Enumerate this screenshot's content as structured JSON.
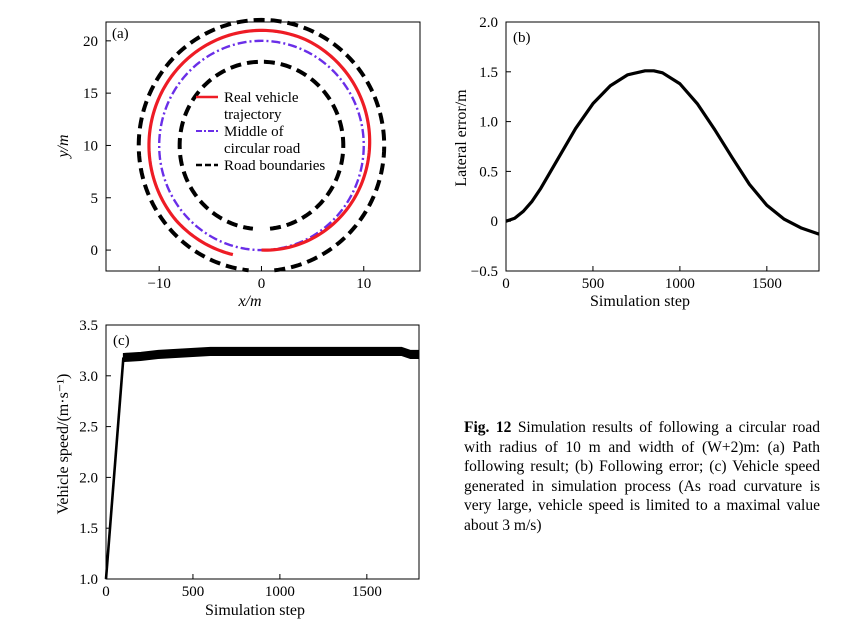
{
  "chart_data": [
    {
      "type": "line",
      "panel_label": "(a)",
      "xlabel": "x/m",
      "ylabel": "y/m",
      "xlim": [
        -15.2,
        15.5
      ],
      "ylim": [
        -2.0,
        21.8
      ],
      "xticks": [
        -10,
        0,
        10
      ],
      "xtick_labels": [
        "−10",
        "0",
        "10"
      ],
      "yticks": [
        0,
        5,
        10,
        15,
        20
      ],
      "ytick_labels": [
        "0",
        "5",
        "10",
        "15",
        "20"
      ],
      "center": [
        0,
        10
      ],
      "series": [
        {
          "name": "Real vehicle trajectory",
          "legend_lines": [
            "Real vehicle",
            "trajectory"
          ],
          "color": "#ee1c25",
          "style": "solid",
          "radius": 11.0,
          "start_angle_deg": -90,
          "sweep_deg": 345
        },
        {
          "name": "Middle of circular road",
          "legend_lines": [
            "Middle of",
            "circular road"
          ],
          "color": "#6a2ee8",
          "style": "dashdot",
          "radius": 10.0,
          "start_angle_deg": -90,
          "sweep_deg": 360
        },
        {
          "name": "Road boundaries",
          "legend_lines": [
            "Road boundaries"
          ],
          "color": "#000000",
          "style": "dashed",
          "inner_radius": 8.0,
          "outer_radius": 12.0
        }
      ]
    },
    {
      "type": "line",
      "panel_label": "(b)",
      "xlabel": "Simulation step",
      "ylabel": "Lateral error/m",
      "xlim": [
        0,
        1800
      ],
      "ylim": [
        -0.5,
        2.0
      ],
      "xticks": [
        0,
        500,
        1000,
        1500
      ],
      "xtick_labels": [
        "0",
        "500",
        "1000",
        "1500"
      ],
      "yticks": [
        -0.5,
        0,
        0.5,
        1.0,
        1.5,
        2.0
      ],
      "ytick_labels": [
        "−0.5",
        "0",
        "0.5",
        "1.0",
        "1.5",
        "2.0"
      ],
      "series": [
        {
          "name": "Lateral error",
          "color": "#000000",
          "x": [
            0,
            50,
            100,
            150,
            200,
            300,
            400,
            500,
            600,
            700,
            800,
            850,
            900,
            1000,
            1100,
            1200,
            1300,
            1400,
            1500,
            1600,
            1700,
            1750,
            1800
          ],
          "y": [
            0.0,
            0.03,
            0.1,
            0.2,
            0.33,
            0.63,
            0.93,
            1.18,
            1.36,
            1.47,
            1.51,
            1.51,
            1.49,
            1.38,
            1.18,
            0.92,
            0.64,
            0.37,
            0.16,
            0.02,
            -0.07,
            -0.1,
            -0.13
          ]
        }
      ]
    },
    {
      "type": "line",
      "panel_label": "(c)",
      "xlabel": "Simulation step",
      "ylabel": "Vehicle speed/(m·s⁻¹)",
      "xlim": [
        0,
        1800
      ],
      "ylim": [
        1.0,
        3.5
      ],
      "xticks": [
        0,
        500,
        1000,
        1500
      ],
      "xtick_labels": [
        "0",
        "500",
        "1000",
        "1500"
      ],
      "yticks": [
        1.0,
        1.5,
        2.0,
        2.5,
        3.0,
        3.5
      ],
      "ytick_labels": [
        "1.0",
        "1.5",
        "2.0",
        "2.5",
        "3.0",
        "3.5"
      ],
      "series": [
        {
          "name": "Vehicle speed",
          "color": "#000000",
          "x": [
            0,
            100,
            200,
            300,
            400,
            500,
            600,
            800,
            1000,
            1200,
            1400,
            1600,
            1700,
            1750,
            1800
          ],
          "y": [
            1.0,
            3.18,
            3.19,
            3.21,
            3.22,
            3.23,
            3.24,
            3.24,
            3.24,
            3.24,
            3.24,
            3.24,
            3.24,
            3.21,
            3.21
          ],
          "band_halfwidth": 0.04
        }
      ]
    }
  ],
  "caption": {
    "label": "Fig. 12",
    "text": " Simulation results of following a circular road with radius of 10 m and width of (W+2)m: (a) Path following result; (b) Following error; (c) Vehicle speed generated in simulation process (As road curvature is very large, vehicle speed is limited to a maximal value about 3 m/s)"
  }
}
